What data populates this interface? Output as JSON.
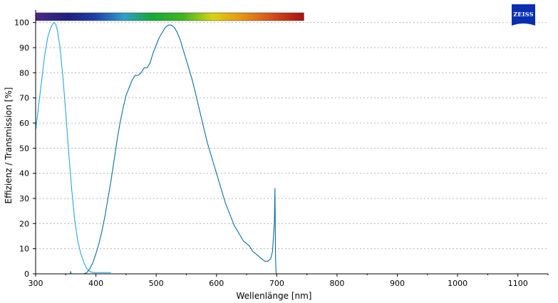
{
  "chart_data": {
    "type": "line",
    "title": "",
    "xlabel": "Wellenlänge [nm]",
    "ylabel": "Effizienz / Transmission [%]",
    "xlim": [
      300,
      1150
    ],
    "ylim": [
      0,
      105
    ],
    "x_ticks": [
      300,
      400,
      500,
      600,
      700,
      800,
      900,
      1000,
      1100
    ],
    "y_ticks": [
      0,
      10,
      20,
      30,
      40,
      50,
      60,
      70,
      80,
      90,
      100
    ],
    "grid": "horizontal",
    "spectrum_bar": {
      "range": [
        300,
        745
      ],
      "stops": [
        {
          "pos": 0.0,
          "color": "#4b2a86"
        },
        {
          "pos": 0.12,
          "color": "#1c1f7e"
        },
        {
          "pos": 0.22,
          "color": "#1f3fa8"
        },
        {
          "pos": 0.33,
          "color": "#2f9fc8"
        },
        {
          "pos": 0.43,
          "color": "#16a83a"
        },
        {
          "pos": 0.55,
          "color": "#3fb51f"
        },
        {
          "pos": 0.66,
          "color": "#d9d410"
        },
        {
          "pos": 0.76,
          "color": "#e89a12"
        },
        {
          "pos": 0.87,
          "color": "#d7561a"
        },
        {
          "pos": 1.0,
          "color": "#a81010"
        }
      ]
    },
    "series": [
      {
        "color": "#29a6d8",
        "x": [
          300,
          305,
          310,
          315,
          320,
          325,
          330,
          333,
          336,
          340,
          345,
          350,
          355,
          360,
          365,
          370,
          375,
          380,
          385,
          390,
          395,
          400,
          410,
          420,
          425
        ],
        "y": [
          57,
          67,
          77,
          87,
          94,
          98,
          100,
          99.5,
          97,
          91,
          79,
          64,
          48,
          33,
          21,
          13,
          8,
          4.5,
          2,
          1,
          0.5,
          0.5,
          0.5,
          0.5,
          0.5
        ]
      },
      {
        "color": "#1f87b8",
        "x": [
          357,
          358,
          359
        ],
        "y": [
          0,
          1,
          0
        ]
      },
      {
        "color": "#0b6ea0",
        "x": [
          380,
          385,
          390,
          395,
          400,
          405,
          410,
          415,
          420,
          425,
          430,
          435,
          440,
          445,
          450,
          455,
          460,
          465,
          470,
          475,
          480,
          485,
          490,
          495,
          500,
          505,
          510,
          515,
          520,
          525,
          530,
          535,
          540,
          545,
          550,
          555,
          560,
          565,
          570,
          575,
          580,
          585,
          590,
          595,
          600,
          605,
          610,
          615,
          620,
          625,
          630,
          635,
          640,
          645,
          650,
          655,
          660,
          665,
          670,
          675,
          680,
          685,
          690,
          693,
          696,
          697,
          698,
          699,
          700
        ],
        "y": [
          0,
          0.5,
          2,
          4.5,
          8,
          12,
          17,
          23,
          30,
          37,
          45,
          53,
          60,
          66,
          71,
          74,
          77,
          79,
          79,
          80,
          82,
          82,
          84,
          88,
          91,
          94,
          96,
          98,
          99,
          99,
          98,
          96,
          93,
          89,
          85,
          81,
          77,
          72,
          67,
          62,
          57,
          52,
          48,
          44,
          40,
          36,
          32,
          28,
          25,
          22,
          19,
          17,
          15,
          13,
          12,
          11,
          9,
          8,
          7,
          6,
          5,
          5,
          6,
          9,
          20,
          34,
          6,
          0,
          0
        ]
      }
    ]
  },
  "logo": {
    "text": "ZEISS",
    "color": "#0a2eb0"
  }
}
